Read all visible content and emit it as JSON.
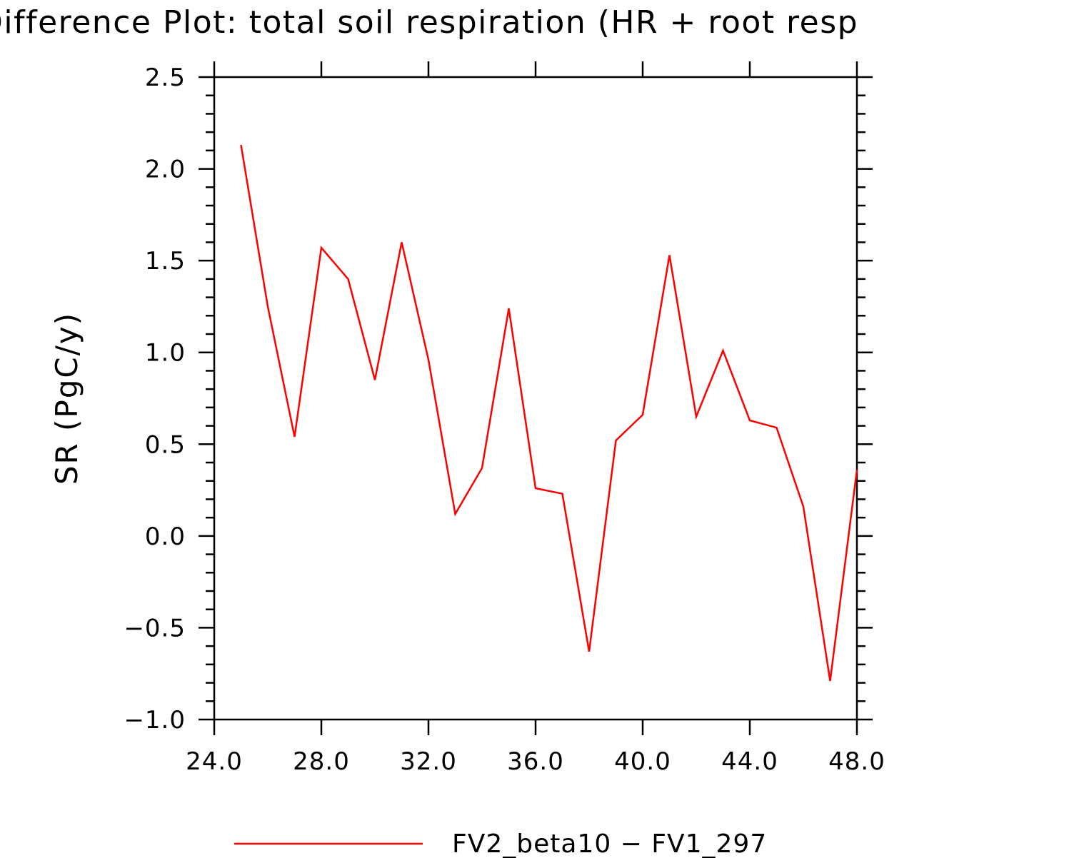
{
  "chart_data": {
    "type": "line",
    "title": "Difference Plot: total soil respiration (HR + root resp",
    "xlabel": "",
    "ylabel": "SR  (PgC/y)",
    "xlim": [
      24,
      48
    ],
    "ylim": [
      -1.0,
      2.5
    ],
    "x_ticks": [
      "24.0",
      "28.0",
      "32.0",
      "36.0",
      "40.0",
      "44.0",
      "48.0"
    ],
    "y_ticks": [
      "2.5",
      "2.0",
      "1.5",
      "1.0",
      "0.5",
      "0.0",
      "−0.5",
      "−1.0"
    ],
    "grid": false,
    "legend_position": "bottom",
    "series": [
      {
        "name": "FV2_beta10 − FV1_297",
        "color": "#ff0000",
        "x": [
          25,
          26,
          27,
          28,
          29,
          30,
          31,
          32,
          33,
          34,
          35,
          36,
          37,
          38,
          39,
          40,
          41,
          42,
          43,
          44,
          45,
          46,
          47,
          48
        ],
        "values": [
          2.13,
          1.25,
          0.54,
          1.57,
          1.4,
          0.85,
          1.6,
          0.96,
          0.12,
          0.37,
          1.24,
          0.26,
          0.23,
          -0.63,
          0.52,
          0.66,
          1.53,
          0.65,
          1.01,
          0.63,
          0.59,
          0.16,
          -0.79,
          0.36
        ]
      }
    ]
  }
}
